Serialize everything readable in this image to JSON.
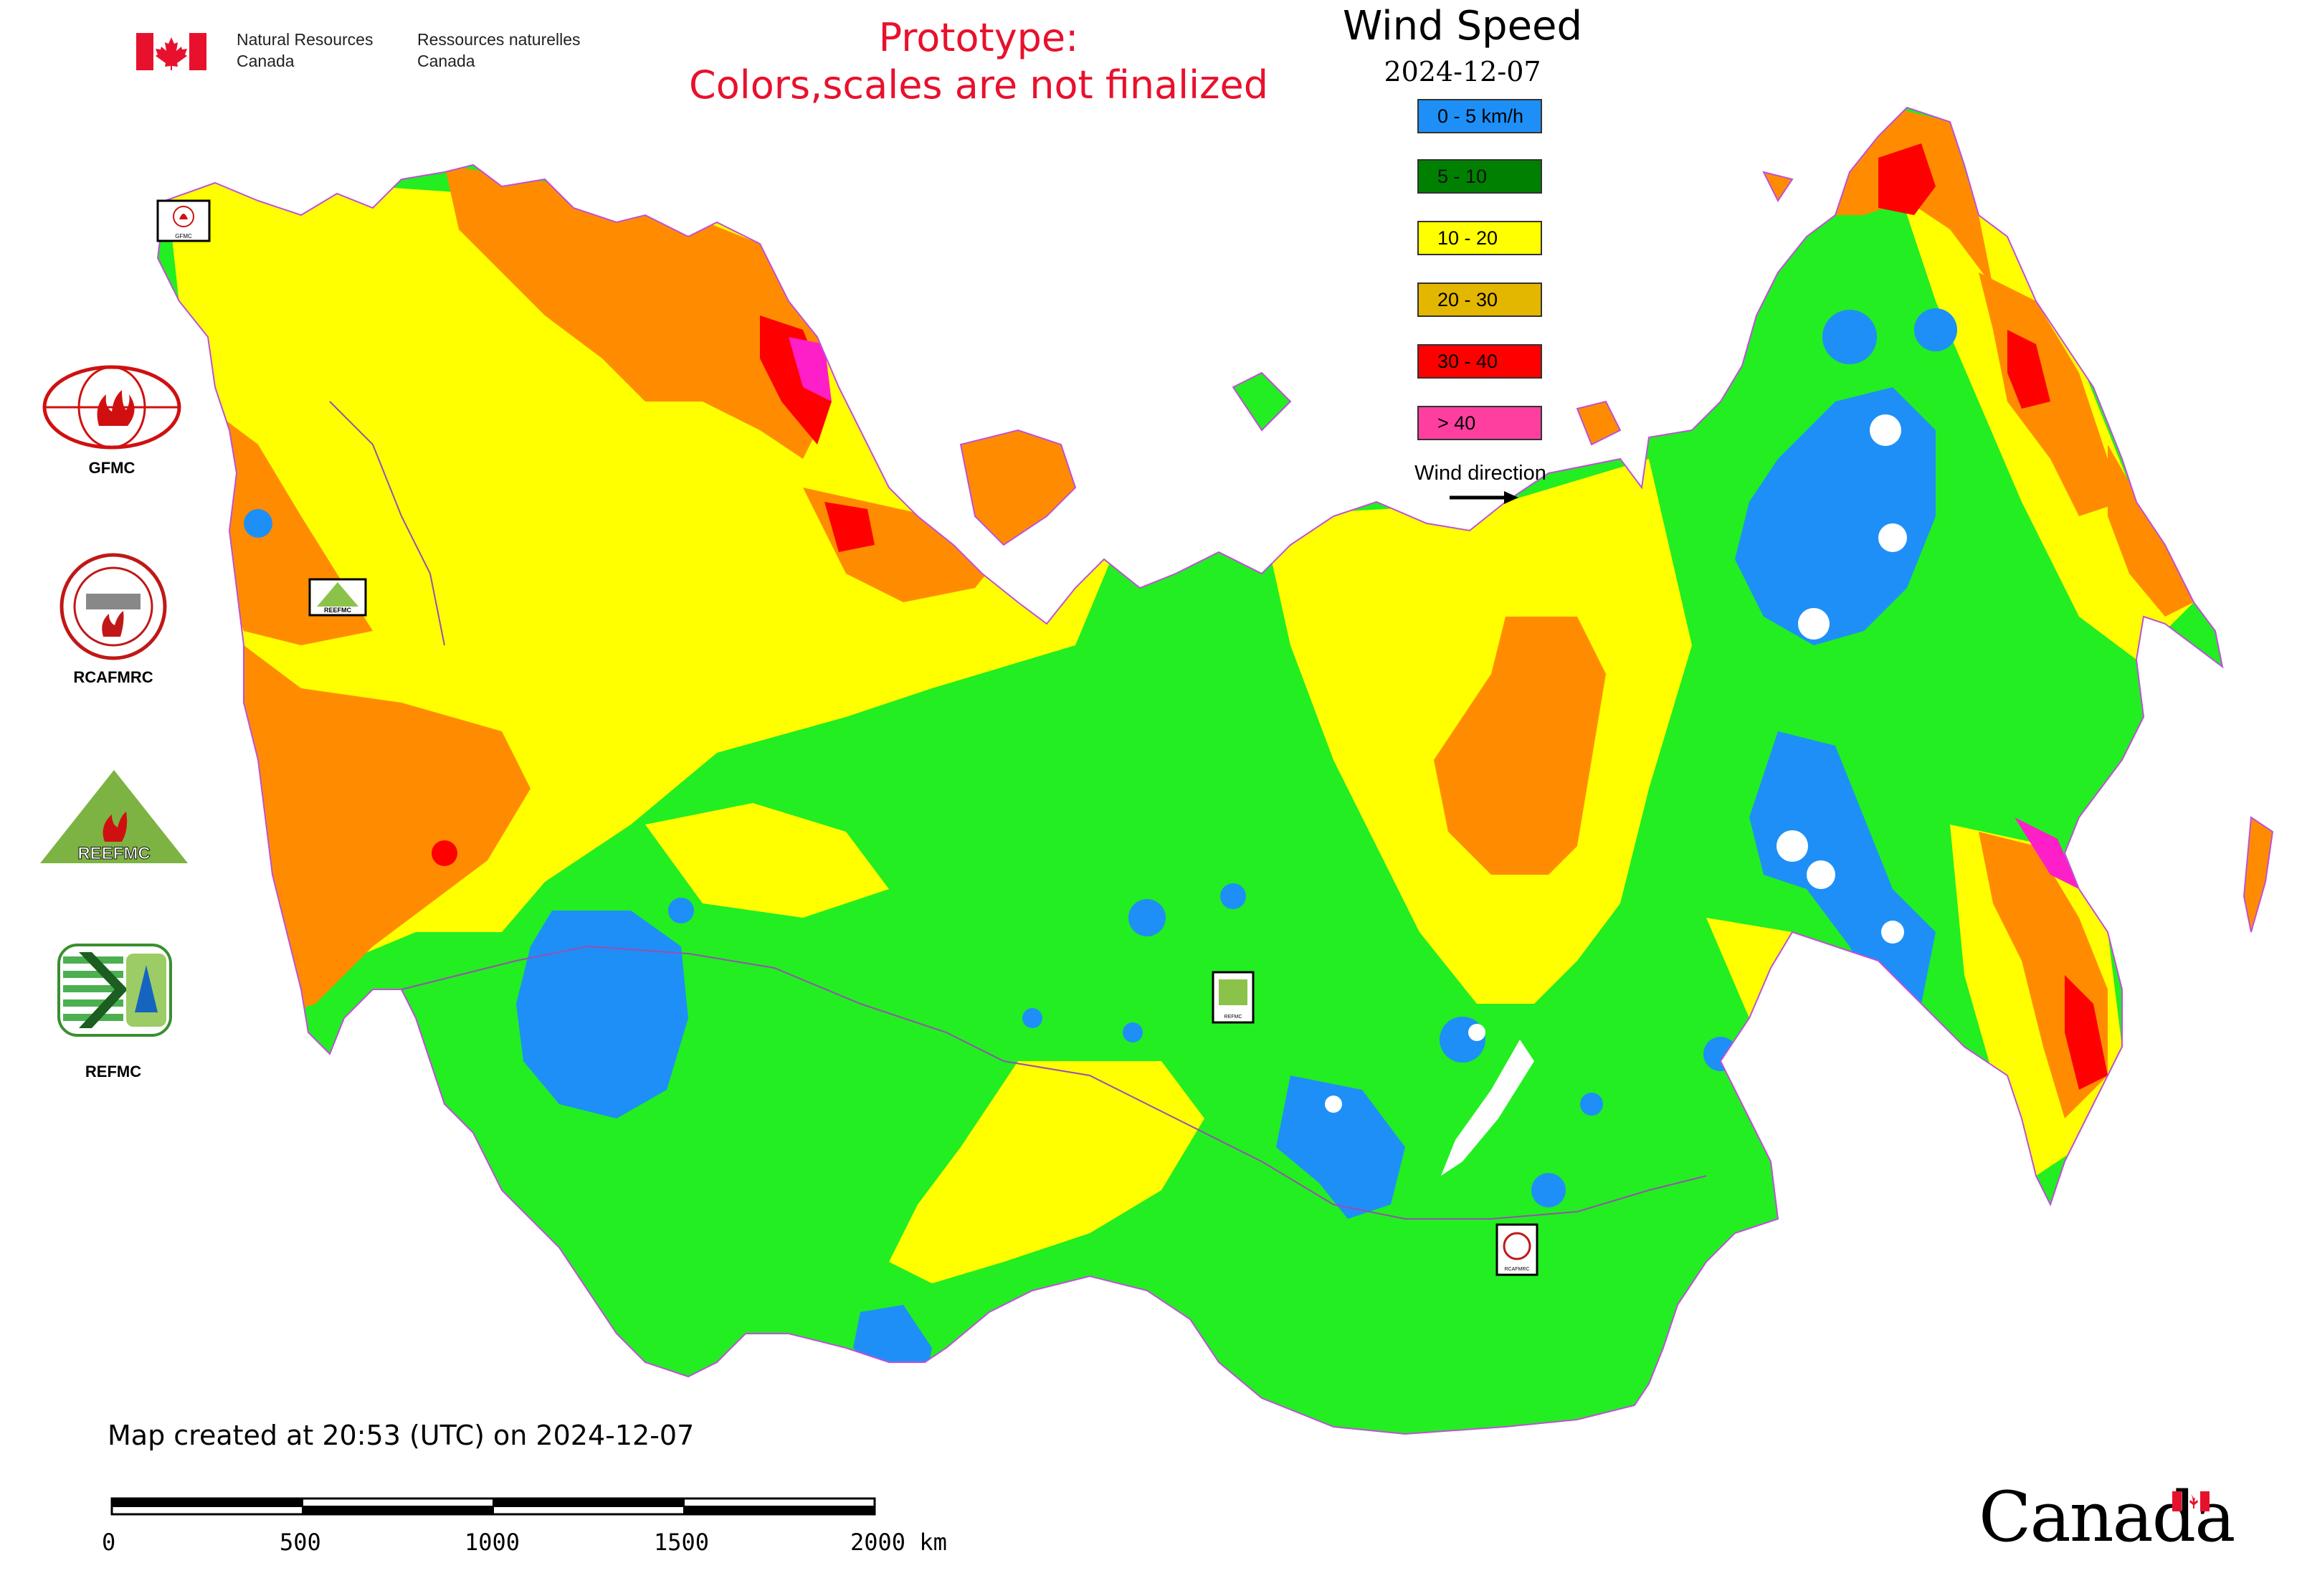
{
  "header": {
    "agency_en_line1": "Natural Resources",
    "agency_en_line2": "Canada",
    "agency_fr_line1": "Ressources naturelles",
    "agency_fr_line2": "Canada",
    "prototype_line1": "Prototype:",
    "prototype_line2": "Colors,scales are not finalized"
  },
  "legend": {
    "title": "Wind Speed",
    "date": "2024-12-07",
    "classes": [
      {
        "label": "0 - 5 km/h",
        "color": "#1e8ff7"
      },
      {
        "label": "5 - 10",
        "color": "#008000"
      },
      {
        "label": "10 - 20",
        "color": "#ffff00"
      },
      {
        "label": "20 - 30",
        "color": "#e3b600"
      },
      {
        "label": "30 - 40",
        "color": "#ff0000"
      },
      {
        "label": "> 40",
        "color": "#ff3fa0"
      }
    ],
    "wind_direction_label": "Wind direction"
  },
  "map_colors": {
    "land_low": "#22ee22",
    "calm": "#1e8ff7",
    "moderate": "#ffff00",
    "strong": "#ff8c00",
    "very_strong": "#ff0000",
    "extreme": "#ff1fc8",
    "boundary": "#b040d0"
  },
  "logos": [
    {
      "name": "GFMC",
      "caption": "GFMC"
    },
    {
      "name": "RCAFMRC",
      "caption": "RCAFMRC"
    },
    {
      "name": "REEFMC",
      "caption": "REEFMC"
    },
    {
      "name": "REFMC",
      "caption": "REFMC"
    }
  ],
  "map_badges": {
    "gfmc": "GFMC",
    "reefmc": "REEFMC",
    "refmc": "REFMC",
    "rcafmrc": "RCAFMRC"
  },
  "footer": {
    "created": "Map created at 20:53 (UTC) on 2024-12-07",
    "scale_ticks": [
      "0",
      "500",
      "1000",
      "1500",
      "2000 km"
    ],
    "wordmark": "Canada"
  }
}
